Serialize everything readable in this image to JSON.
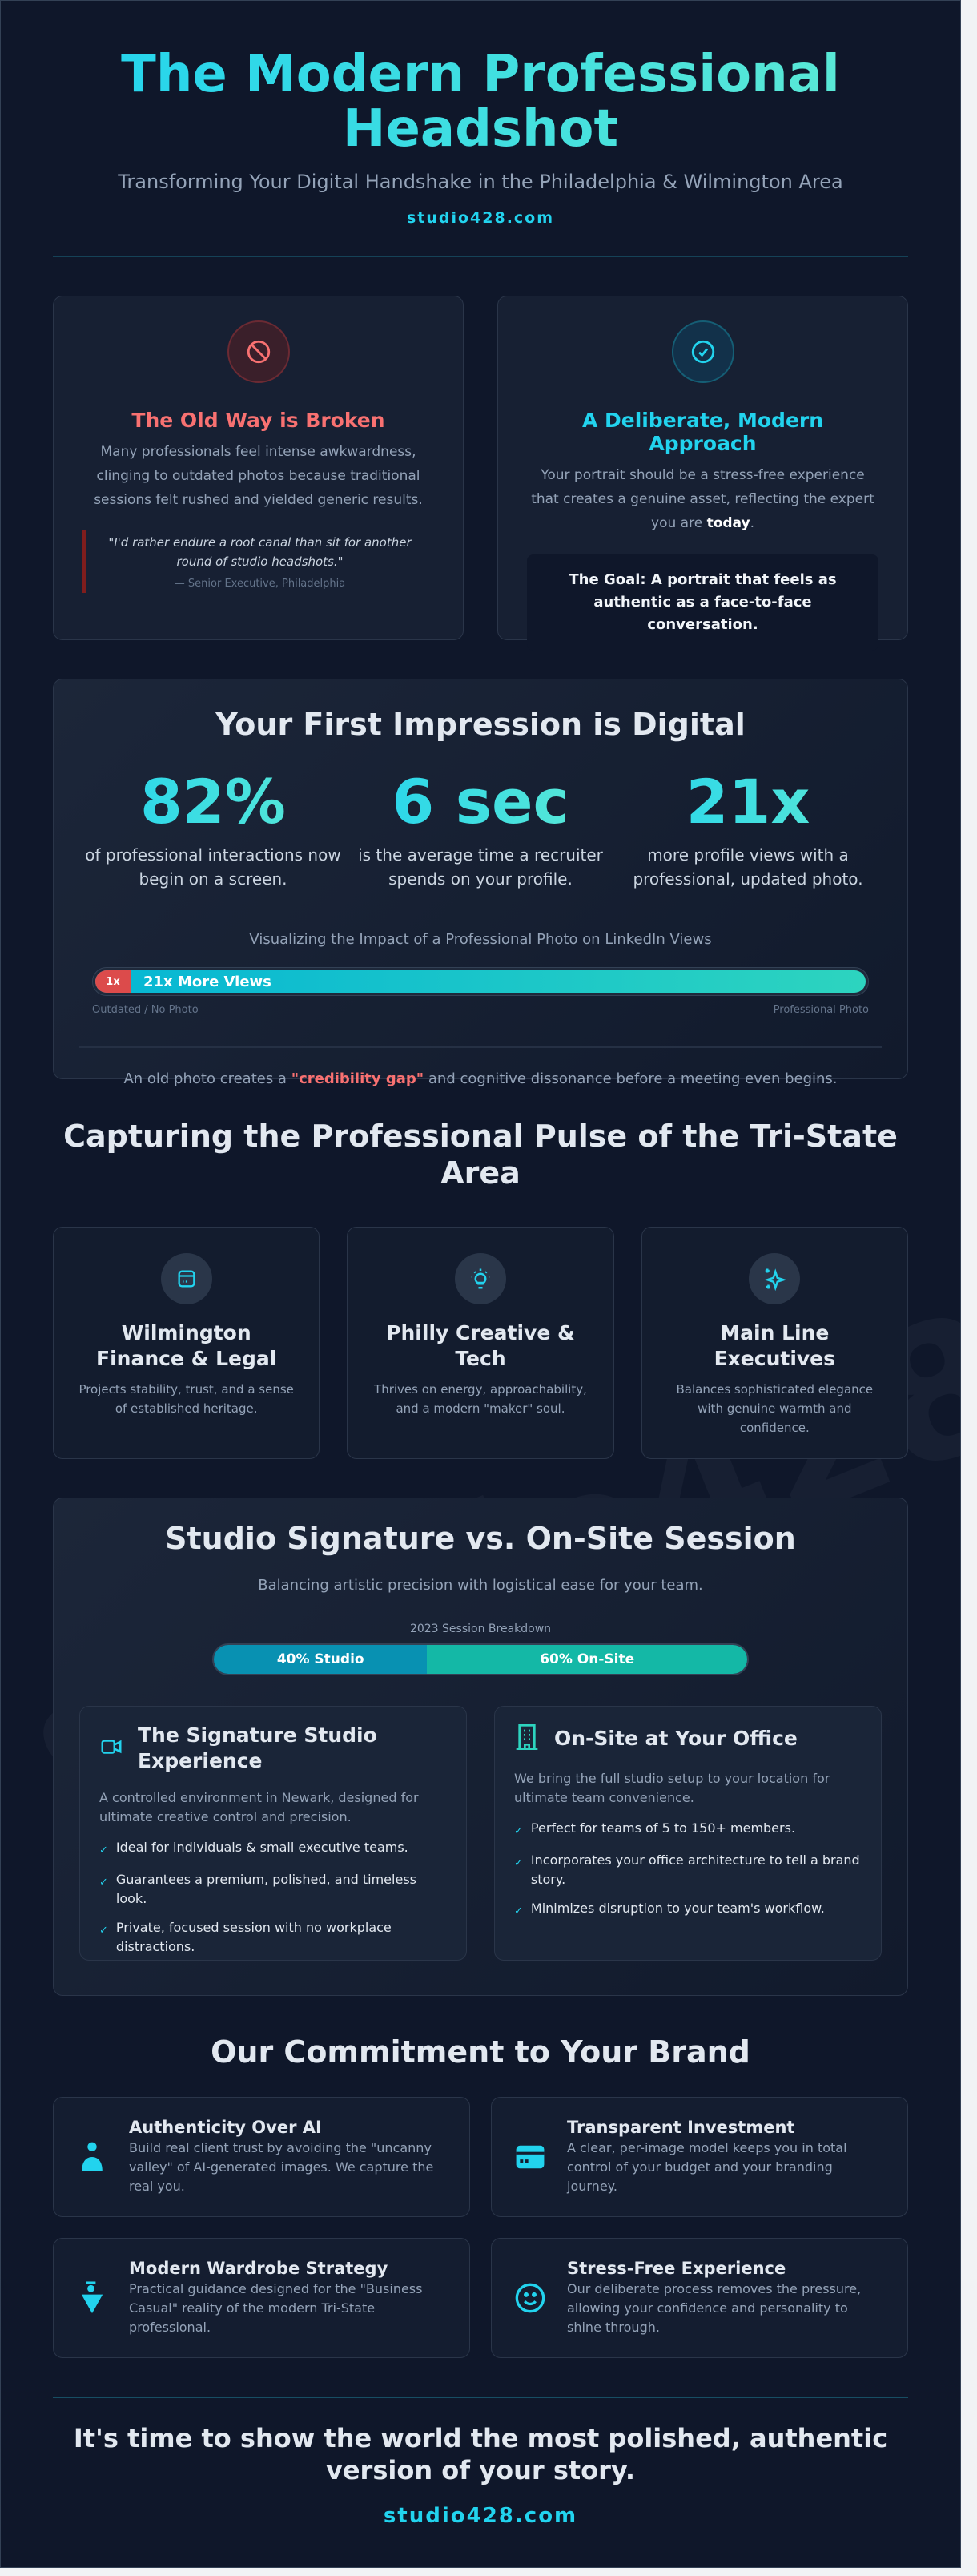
{
  "header": {
    "title": "The Modern Professional Headshot",
    "subtitle": "Transforming Your Digital Handshake in the Philadelphia & Wilmington Area",
    "link": "studio428.com"
  },
  "watermark": "studio428.com",
  "problem": {
    "icon": "ban-icon",
    "title": "The Old Way is Broken",
    "text": "Many professionals feel intense awkwardness, clinging to outdated photos because traditional sessions felt rushed and yielded generic results.",
    "quote": "\"I'd rather endure a root canal than sit for another round of studio headshots.\"",
    "attribution": "— Senior Executive, Philadelphia"
  },
  "solution": {
    "icon": "check-circle-icon",
    "title": "A Deliberate, Modern Approach",
    "text_before": "Your portrait should be a stress-free experience that creates a genuine asset, reflecting the expert you are ",
    "text_bold": "today",
    "text_after": ".",
    "goal": "The Goal: A portrait that feels as authentic as a face-to-face conversation."
  },
  "digital": {
    "title": "Your First Impression is Digital",
    "stats": [
      {
        "value": "82%",
        "desc": "of professional interactions now begin on a screen."
      },
      {
        "value": "6 sec",
        "desc": "is the average time a recruiter spends on your profile."
      },
      {
        "value": "21x",
        "desc": "more profile views with a professional, updated photo."
      }
    ],
    "viz_label": "Visualizing the Impact of a Professional Photo on LinkedIn Views",
    "bar_base": "1x",
    "bar_label": "21x More Views",
    "bar_left": "Outdated / No Photo",
    "bar_right": "Professional Photo",
    "gap_before": "An old photo creates a ",
    "gap_bold": "\"credibility gap\"",
    "gap_after": " and cognitive dissonance before a meeting even begins."
  },
  "pulse": {
    "title": "Capturing the Professional Pulse of the Tri-State Area",
    "items": [
      {
        "icon": "credit-card-icon",
        "title": "Wilmington Finance & Legal",
        "text": "Projects stability, trust, and a sense of established heritage."
      },
      {
        "icon": "lightbulb-icon",
        "title": "Philly Creative & Tech",
        "text": "Thrives on energy, approachability, and a modern \"maker\" soul."
      },
      {
        "icon": "sparkles-icon",
        "title": "Main Line Executives",
        "text": "Balances sophisticated elegance with genuine warmth and confidence."
      }
    ]
  },
  "compare": {
    "title": "Studio Signature vs. On-Site Session",
    "subtitle": "Balancing artistic precision with logistical ease for your team.",
    "breakdown_label": "2023 Session Breakdown",
    "studio_pct": 40,
    "onsite_pct": 60,
    "studio_label": "40% Studio",
    "onsite_label": "60% On-Site",
    "options": [
      {
        "icon": "video-camera-icon",
        "title": "The Signature Studio Experience",
        "text": "A controlled environment in Newark, designed for ultimate creative control and precision.",
        "points": [
          "Ideal for individuals & small executive teams.",
          "Guarantees a premium, polished, and timeless look.",
          "Private, focused session with no workplace distractions."
        ]
      },
      {
        "icon": "building-icon",
        "title": "On-Site at Your Office",
        "text": "We bring the full studio setup to your location for ultimate team convenience.",
        "points": [
          "Perfect for teams of 5 to 150+ members.",
          "Incorporates your office architecture to tell a brand story.",
          "Minimizes disruption to your team's workflow."
        ]
      }
    ]
  },
  "commitment": {
    "title": "Our Commitment to Your Brand",
    "items": [
      {
        "icon": "person-icon",
        "title": "Authenticity Over AI",
        "text": "Build real client trust by avoiding the \"uncanny valley\" of AI-generated images. We capture the real you."
      },
      {
        "icon": "wallet-icon",
        "title": "Transparent Investment",
        "text": "A clear, per-image model keeps you in total control of your budget and your branding journey."
      },
      {
        "icon": "hanger-icon",
        "title": "Modern Wardrobe Strategy",
        "text": "Practical guidance designed for the \"Business Casual\" reality of the modern Tri-State professional."
      },
      {
        "icon": "smile-icon",
        "title": "Stress-Free Experience",
        "text": "Our deliberate process removes the pressure, allowing your confidence and personality to shine through."
      }
    ]
  },
  "footer": {
    "cta": "It's time to show the world the most polished, authentic version of your story.",
    "link": "studio428.com"
  },
  "colors": {
    "background": "#0f172a",
    "accent": "#22d3ee",
    "accent2": "#2dd4bf",
    "danger": "#f87171"
  }
}
